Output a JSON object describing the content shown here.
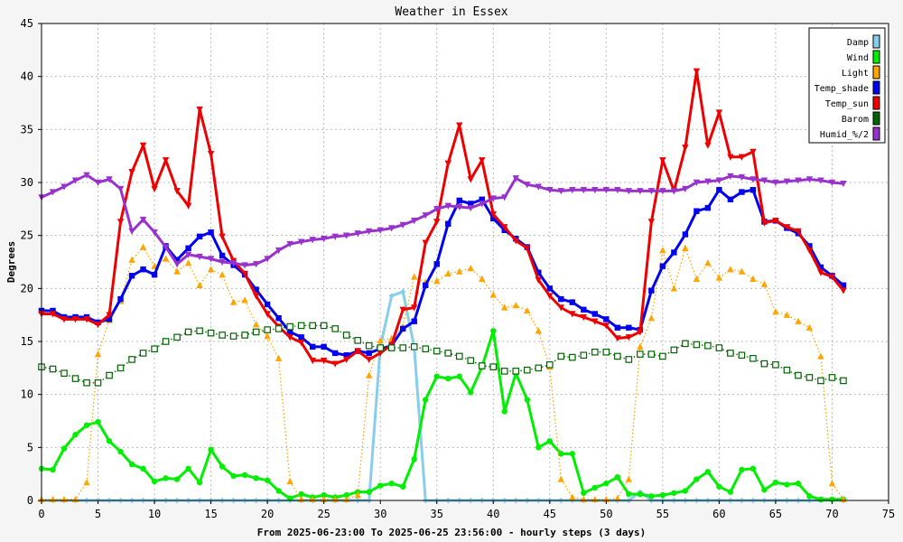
{
  "chart_data": {
    "type": "line",
    "title": "Weather in Essex",
    "xlabel": "From 2025-06-23:00 To 2025-06-25 23:56:00 - hourly steps (3 days)",
    "ylabel": "Degrees",
    "xlim": [
      0,
      75
    ],
    "ylim": [
      0,
      45
    ],
    "xticks": [
      0,
      5,
      10,
      15,
      20,
      25,
      30,
      35,
      40,
      45,
      50,
      55,
      60,
      65,
      70,
      75
    ],
    "yticks": [
      0,
      5,
      10,
      15,
      20,
      25,
      30,
      35,
      40,
      45
    ],
    "grid": true,
    "legend_position": "top-right",
    "series": [
      {
        "name": "Damp",
        "color": "#87ceeb",
        "line": "solid",
        "marker": "diamond",
        "x": [
          0,
          1,
          2,
          3,
          4,
          5,
          6,
          7,
          8,
          9,
          10,
          11,
          12,
          13,
          14,
          15,
          16,
          17,
          18,
          19,
          20,
          21,
          22,
          23,
          24,
          25,
          26,
          27,
          28,
          29,
          30,
          31,
          32,
          33,
          34,
          35,
          36,
          37,
          38,
          39,
          40,
          41,
          42,
          43,
          44,
          45,
          46,
          47,
          48,
          49,
          50,
          51,
          52,
          53,
          54,
          55,
          56,
          57,
          58,
          59,
          60,
          61,
          62,
          63,
          64,
          65,
          66,
          67,
          68,
          69,
          70,
          71
        ],
        "values": [
          0,
          0,
          0,
          0,
          0,
          0,
          0,
          0,
          0,
          0,
          0,
          0,
          0,
          0,
          0,
          0,
          0,
          0,
          0,
          0,
          0,
          0,
          0,
          0,
          0,
          0,
          0,
          0,
          0,
          0,
          14.5,
          19.3,
          19.7,
          14.5,
          0,
          0,
          0,
          0,
          0,
          0,
          0,
          0,
          0,
          0,
          0,
          0,
          0,
          0,
          0,
          0,
          0,
          0,
          0,
          0.8,
          0,
          0,
          0,
          0,
          0,
          0,
          0,
          0,
          0,
          0,
          0,
          0,
          0,
          0,
          0,
          0,
          0,
          0
        ]
      },
      {
        "name": "Wind",
        "color": "#00ee00",
        "line": "solid",
        "marker": "circle",
        "x": [
          0,
          1,
          2,
          3,
          4,
          5,
          6,
          7,
          8,
          9,
          10,
          11,
          12,
          13,
          14,
          15,
          16,
          17,
          18,
          19,
          20,
          21,
          22,
          23,
          24,
          25,
          26,
          27,
          28,
          29,
          30,
          31,
          32,
          33,
          34,
          35,
          36,
          37,
          38,
          39,
          40,
          41,
          42,
          43,
          44,
          45,
          46,
          47,
          48,
          49,
          50,
          51,
          52,
          53,
          54,
          55,
          56,
          57,
          58,
          59,
          60,
          61,
          62,
          63,
          64,
          65,
          66,
          67,
          68,
          69,
          70,
          71
        ],
        "values": [
          3.0,
          2.9,
          4.9,
          6.2,
          7.1,
          7.4,
          5.6,
          4.6,
          3.4,
          3.0,
          1.8,
          2.1,
          2.0,
          3.0,
          1.7,
          4.8,
          3.2,
          2.3,
          2.4,
          2.1,
          1.9,
          0.9,
          0.2,
          0.6,
          0.3,
          0.5,
          0.3,
          0.5,
          0.8,
          0.8,
          1.4,
          1.6,
          1.3,
          3.9,
          9.5,
          11.7,
          11.5,
          11.7,
          10.2,
          12.6,
          16.0,
          8.4,
          12.0,
          9.5,
          5.0,
          5.6,
          4.4,
          4.4,
          0.7,
          1.2,
          1.6,
          2.2,
          0.6,
          0.6,
          0.4,
          0.5,
          0.7,
          0.9,
          2.0,
          2.7,
          1.3,
          0.8,
          2.9,
          3.0,
          1.0,
          1.7,
          1.5,
          1.6,
          0.4,
          0.1,
          0.1,
          0.1
        ]
      },
      {
        "name": "Light",
        "color": "#ffa500",
        "line": "dotted",
        "marker": "triangle",
        "x": [
          0,
          1,
          2,
          3,
          4,
          5,
          6,
          7,
          8,
          9,
          10,
          11,
          12,
          13,
          14,
          15,
          16,
          17,
          18,
          19,
          20,
          21,
          22,
          23,
          24,
          25,
          26,
          27,
          28,
          29,
          30,
          31,
          32,
          33,
          34,
          35,
          36,
          37,
          38,
          39,
          40,
          41,
          42,
          43,
          44,
          45,
          46,
          47,
          48,
          49,
          50,
          51,
          52,
          53,
          54,
          55,
          56,
          57,
          58,
          59,
          60,
          61,
          62,
          63,
          64,
          65,
          66,
          67,
          68,
          69,
          70,
          71
        ],
        "values": [
          0.1,
          0.1,
          0.1,
          0.1,
          1.7,
          13.8,
          17.0,
          18.8,
          22.7,
          23.9,
          22.1,
          22.8,
          21.6,
          22.4,
          20.3,
          21.8,
          21.3,
          18.7,
          18.9,
          16.6,
          15.5,
          13.4,
          1.8,
          0.1,
          0.1,
          0.1,
          0.1,
          0.1,
          0.5,
          11.8,
          15.1,
          15.3,
          16.4,
          21.1,
          20.6,
          20.7,
          21.4,
          21.6,
          21.9,
          20.9,
          19.4,
          18.2,
          18.4,
          17.9,
          16.0,
          12.6,
          2.0,
          0.3,
          0.1,
          0.1,
          0.1,
          0.2,
          2.0,
          14.5,
          17.2,
          23.6,
          20.0,
          23.8,
          20.9,
          22.4,
          21.0,
          21.8,
          21.6,
          20.9,
          20.4,
          17.8,
          17.5,
          16.9,
          16.3,
          13.6,
          1.6,
          0.1
        ]
      },
      {
        "name": "Temp_shade",
        "color": "#0000ee",
        "line": "solid",
        "marker": "square",
        "x": [
          0,
          1,
          2,
          3,
          4,
          5,
          6,
          7,
          8,
          9,
          10,
          11,
          12,
          13,
          14,
          15,
          16,
          17,
          18,
          19,
          20,
          21,
          22,
          23,
          24,
          25,
          26,
          27,
          28,
          29,
          30,
          31,
          32,
          33,
          34,
          35,
          36,
          37,
          38,
          39,
          40,
          41,
          42,
          43,
          44,
          45,
          46,
          47,
          48,
          49,
          50,
          51,
          52,
          53,
          54,
          55,
          56,
          57,
          58,
          59,
          60,
          61,
          62,
          63,
          64,
          65,
          66,
          67,
          68,
          69,
          70,
          71
        ],
        "values": [
          17.9,
          17.9,
          17.3,
          17.3,
          17.3,
          16.8,
          17.1,
          19.0,
          21.2,
          21.8,
          21.3,
          24.0,
          22.7,
          23.8,
          24.9,
          25.3,
          23.1,
          22.2,
          21.3,
          19.9,
          18.5,
          17.2,
          15.9,
          15.4,
          14.5,
          14.5,
          13.9,
          13.7,
          14.1,
          13.9,
          14.3,
          14.6,
          16.2,
          16.9,
          20.3,
          22.3,
          26.1,
          28.3,
          28.0,
          28.4,
          26.6,
          25.5,
          24.7,
          23.9,
          21.5,
          20.0,
          19.0,
          18.7,
          18.0,
          17.6,
          17.1,
          16.3,
          16.3,
          16.1,
          19.8,
          22.1,
          23.4,
          25.1,
          27.3,
          27.6,
          29.3,
          28.4,
          29.1,
          29.3,
          26.3,
          26.4,
          25.7,
          25.2,
          24.0,
          22.0,
          21.2,
          20.3
        ]
      },
      {
        "name": "Temp_sun",
        "color": "#ee0000",
        "line": "solid",
        "marker": "triangle-down",
        "x": [
          0,
          1,
          2,
          3,
          4,
          5,
          6,
          7,
          8,
          9,
          10,
          11,
          12,
          13,
          14,
          15,
          16,
          17,
          18,
          19,
          20,
          21,
          22,
          23,
          24,
          25,
          26,
          27,
          28,
          29,
          30,
          31,
          32,
          33,
          34,
          35,
          36,
          37,
          38,
          39,
          40,
          41,
          42,
          43,
          44,
          45,
          46,
          47,
          48,
          49,
          50,
          51,
          52,
          53,
          54,
          55,
          56,
          57,
          58,
          59,
          60,
          61,
          62,
          63,
          64,
          65,
          66,
          67,
          68,
          69,
          70,
          71
        ],
        "values": [
          17.6,
          17.6,
          17.1,
          17.1,
          17.1,
          16.6,
          17.5,
          26.3,
          31.0,
          33.5,
          29.4,
          32.1,
          29.2,
          27.8,
          36.9,
          32.7,
          24.9,
          22.6,
          21.4,
          19.3,
          17.6,
          16.4,
          15.4,
          14.9,
          13.2,
          13.2,
          12.9,
          13.3,
          14.1,
          13.3,
          13.9,
          14.7,
          18.0,
          18.2,
          24.3,
          26.3,
          31.8,
          35.4,
          30.3,
          32.1,
          27.0,
          25.8,
          24.5,
          23.8,
          20.8,
          19.3,
          18.2,
          17.6,
          17.3,
          16.9,
          16.5,
          15.3,
          15.4,
          15.9,
          26.3,
          32.1,
          29.2,
          33.3,
          40.5,
          33.5,
          36.6,
          32.4,
          32.4,
          32.9,
          26.2,
          26.4,
          25.8,
          25.4,
          23.6,
          21.5,
          21.1,
          19.8
        ]
      },
      {
        "name": "Barom",
        "color": "#006400",
        "line": "dotted",
        "marker": "open-square",
        "x": [
          0,
          1,
          2,
          3,
          4,
          5,
          6,
          7,
          8,
          9,
          10,
          11,
          12,
          13,
          14,
          15,
          16,
          17,
          18,
          19,
          20,
          21,
          22,
          23,
          24,
          25,
          26,
          27,
          28,
          29,
          30,
          31,
          32,
          33,
          34,
          35,
          36,
          37,
          38,
          39,
          40,
          41,
          42,
          43,
          44,
          45,
          46,
          47,
          48,
          49,
          50,
          51,
          52,
          53,
          54,
          55,
          56,
          57,
          58,
          59,
          60,
          61,
          62,
          63,
          64,
          65,
          66,
          67,
          68,
          69,
          70,
          71
        ],
        "values": [
          12.6,
          12.4,
          12.0,
          11.5,
          11.1,
          11.1,
          11.8,
          12.5,
          13.3,
          13.9,
          14.3,
          15.0,
          15.4,
          15.9,
          16.0,
          15.8,
          15.6,
          15.5,
          15.6,
          15.9,
          16.1,
          16.2,
          16.4,
          16.5,
          16.5,
          16.5,
          16.2,
          15.6,
          15.1,
          14.6,
          14.4,
          14.4,
          14.4,
          14.5,
          14.3,
          14.1,
          13.9,
          13.6,
          13.2,
          12.7,
          12.6,
          12.2,
          12.2,
          12.3,
          12.5,
          12.8,
          13.6,
          13.5,
          13.7,
          14.0,
          14.0,
          13.6,
          13.3,
          13.8,
          13.8,
          13.6,
          14.2,
          14.8,
          14.7,
          14.6,
          14.4,
          13.9,
          13.7,
          13.4,
          12.9,
          12.8,
          12.3,
          11.8,
          11.6,
          11.3,
          11.6,
          11.3
        ]
      },
      {
        "name": "Humid_%/2",
        "color": "#9932cc",
        "line": "solid",
        "marker": "triangle-down",
        "x": [
          0,
          1,
          2,
          3,
          4,
          5,
          6,
          7,
          8,
          9,
          10,
          11,
          12,
          13,
          14,
          15,
          16,
          17,
          18,
          19,
          20,
          21,
          22,
          23,
          24,
          25,
          26,
          27,
          28,
          29,
          30,
          31,
          32,
          33,
          34,
          35,
          36,
          37,
          38,
          39,
          40,
          41,
          42,
          43,
          44,
          45,
          46,
          47,
          48,
          49,
          50,
          51,
          52,
          53,
          54,
          55,
          56,
          57,
          58,
          59,
          60,
          61,
          62,
          63,
          64,
          65,
          66,
          67,
          68,
          69,
          70,
          71
        ],
        "values": [
          28.6,
          29.1,
          29.6,
          30.2,
          30.7,
          30.0,
          30.3,
          29.4,
          25.4,
          26.5,
          25.3,
          23.9,
          22.3,
          23.2,
          23.0,
          22.8,
          22.5,
          22.4,
          22.2,
          22.3,
          22.8,
          23.6,
          24.2,
          24.4,
          24.6,
          24.7,
          24.9,
          25.0,
          25.2,
          25.4,
          25.5,
          25.7,
          26.0,
          26.4,
          26.9,
          27.5,
          27.8,
          27.7,
          27.6,
          28.0,
          28.5,
          28.6,
          30.4,
          29.8,
          29.6,
          29.3,
          29.2,
          29.3,
          29.3,
          29.3,
          29.3,
          29.3,
          29.2,
          29.2,
          29.2,
          29.2,
          29.2,
          29.4,
          30.0,
          30.1,
          30.2,
          30.6,
          30.5,
          30.3,
          30.2,
          30.0,
          30.1,
          30.2,
          30.3,
          30.2,
          30.0,
          29.9
        ]
      }
    ]
  }
}
